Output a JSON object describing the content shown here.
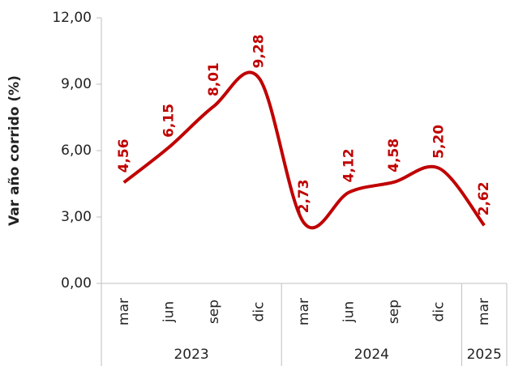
{
  "chart_data": {
    "type": "line",
    "y_label": "Var año corrido (%)",
    "categories": [
      "mar",
      "jun",
      "sep",
      "dic",
      "mar",
      "jun",
      "sep",
      "dic",
      "mar"
    ],
    "groups": [
      {
        "label": "2023",
        "span": 4
      },
      {
        "label": "2024",
        "span": 4
      },
      {
        "label": "2025",
        "span": 1
      }
    ],
    "series": [
      {
        "name": "Var año corrido",
        "color": "#c00000",
        "values": [
          4.56,
          6.15,
          8.01,
          9.28,
          2.73,
          4.12,
          4.58,
          5.2,
          2.62
        ],
        "value_labels": [
          "4,56",
          "6,15",
          "8,01",
          "9,28",
          "2,73",
          "4,12",
          "4,58",
          "5,20",
          "2,62"
        ]
      }
    ],
    "ylim": [
      0,
      12
    ],
    "yticks": [
      {
        "value": 0,
        "label": "0,00"
      },
      {
        "value": 3,
        "label": "3,00"
      },
      {
        "value": 6,
        "label": "6,00"
      },
      {
        "value": 9,
        "label": "9,00"
      },
      {
        "value": 12,
        "label": "12,00"
      }
    ],
    "grid": false,
    "smooth": true
  }
}
